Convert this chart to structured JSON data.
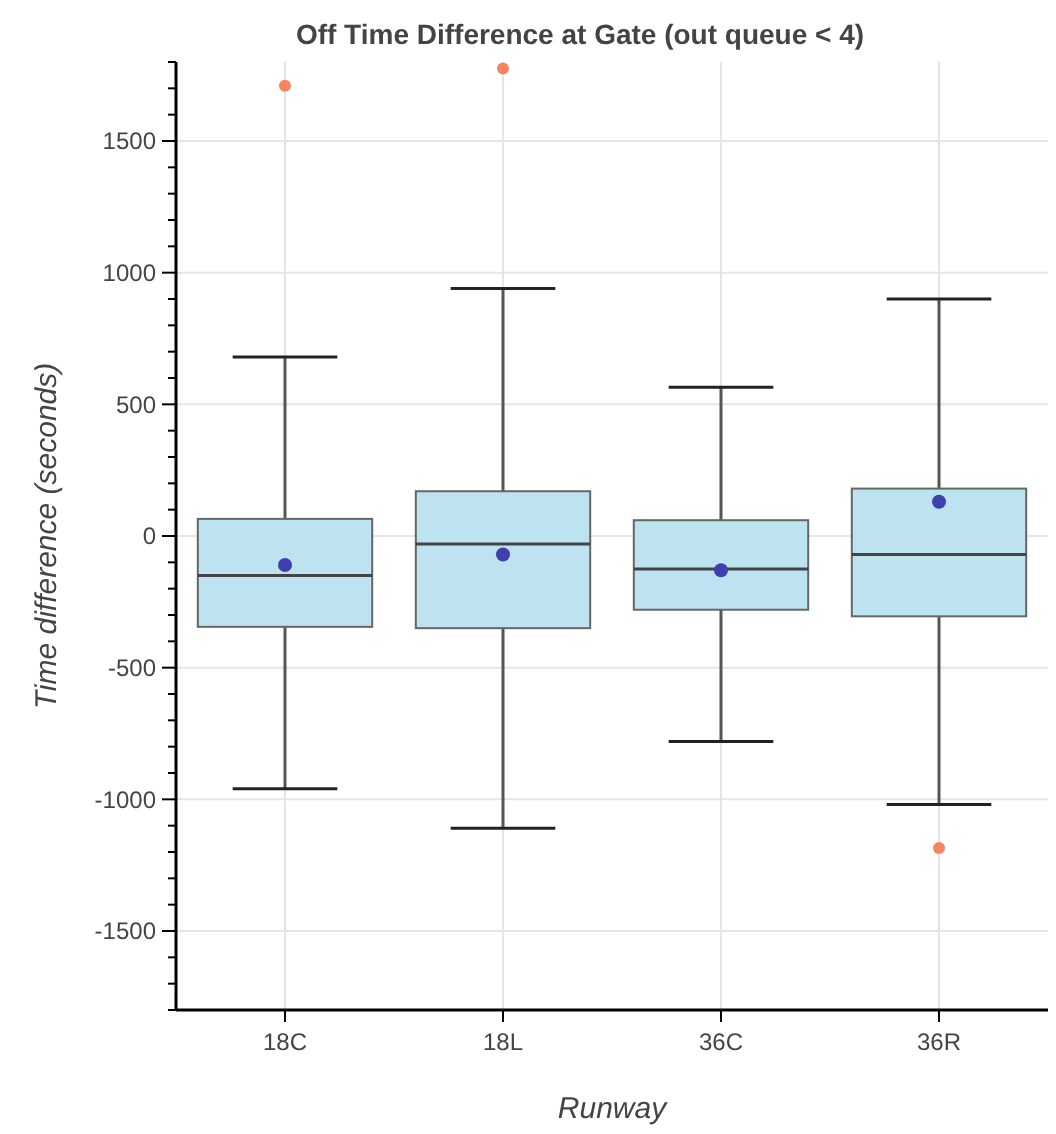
{
  "chart_data": {
    "type": "box",
    "title": "Off Time Difference at Gate (out queue < 4)",
    "xlabel": "Runway",
    "ylabel": "Time difference (seconds)",
    "categories": [
      "18C",
      "18L",
      "36C",
      "36R"
    ],
    "series": [
      {
        "color": "#bde3f0",
        "boxes": [
          {
            "low": -960,
            "q1": -345,
            "median": -150,
            "q3": 65,
            "high": 680,
            "mean": -110,
            "outliers": [
              1710
            ]
          },
          {
            "low": -1110,
            "q1": -350,
            "median": -30,
            "q3": 170,
            "high": 940,
            "mean": -70,
            "outliers": [
              1775
            ]
          },
          {
            "low": -780,
            "q1": -280,
            "median": -125,
            "q3": 60,
            "high": 565,
            "mean": -130
          },
          {
            "low": -1020,
            "q1": -305,
            "median": -70,
            "q3": 180,
            "high": 900,
            "mean": 130,
            "outliers": [
              -1185
            ]
          }
        ]
      }
    ],
    "ylim": [
      -1800,
      1800
    ],
    "yticks": [
      {
        "value": -1800,
        "label": null
      },
      {
        "value": -1700,
        "label": null
      },
      {
        "value": -1600,
        "label": null
      },
      -1500,
      {
        "value": -1400,
        "label": null
      },
      {
        "value": -1300,
        "label": null
      },
      {
        "value": -1200,
        "label": null
      },
      {
        "value": -1100,
        "label": null
      },
      -1000,
      {
        "value": -900,
        "label": null
      },
      {
        "value": -800,
        "label": null
      },
      {
        "value": -700,
        "label": null
      },
      {
        "value": -600,
        "label": null
      },
      -500,
      {
        "value": -400,
        "label": null
      },
      {
        "value": -300,
        "label": null
      },
      {
        "value": -200,
        "label": null
      },
      {
        "value": -100,
        "label": null
      },
      0,
      {
        "value": 100,
        "label": null
      },
      {
        "value": 200,
        "label": null
      },
      {
        "value": 300,
        "label": null
      },
      {
        "value": 400,
        "label": null
      },
      500,
      {
        "value": 600,
        "label": null
      },
      {
        "value": 700,
        "label": null
      },
      {
        "value": 800,
        "label": null
      },
      {
        "value": 900,
        "label": null
      },
      1000,
      {
        "value": 1100,
        "label": null
      },
      {
        "value": 1200,
        "label": null
      },
      {
        "value": 1300,
        "label": null
      },
      {
        "value": 1400,
        "label": null
      },
      1500,
      {
        "value": 1600,
        "label": null
      },
      {
        "value": 1700,
        "label": null
      },
      {
        "value": 1800,
        "label": null
      }
    ],
    "grid": true
  }
}
